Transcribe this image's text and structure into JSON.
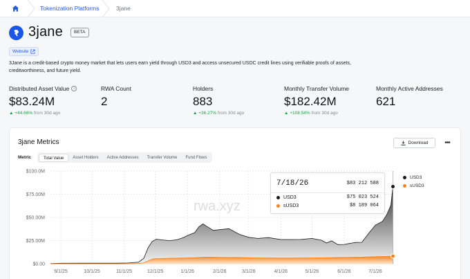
{
  "breadcrumb": {
    "items": [
      "Tokenization Platforms",
      "3jane"
    ]
  },
  "header": {
    "title": "3jane",
    "badge": "BETA",
    "website_label": "Website",
    "description": "3Jane is a credit-based crypto money market that lets users earn yield through USD3 and access unsecured USDC credit lines using verifiable proofs of assets, creditworthiness, and future yield."
  },
  "stats": [
    {
      "label": "Distributed Asset Value",
      "value": "$83.24M",
      "change": "+44.66%",
      "suffix": "from 30d ago"
    },
    {
      "label": "RWA Count",
      "value": "2",
      "change": "",
      "suffix": ""
    },
    {
      "label": "Holders",
      "value": "883",
      "change": "+36.27%",
      "suffix": "from 30d ago"
    },
    {
      "label": "Monthly Transfer Volume",
      "value": "$182.42M",
      "change": "+108.54%",
      "suffix": "from 30d ago"
    },
    {
      "label": "Monthly Active Addresses",
      "value": "621",
      "change": "",
      "suffix": ""
    }
  ],
  "metrics": {
    "title": "3jane Metrics",
    "download_label": "Download",
    "metric_label": "Metric",
    "tabs": [
      "Total Value",
      "Asset Holders",
      "Active Addresses",
      "Transfer Volume",
      "Fund Flows"
    ],
    "active_tab": 0
  },
  "tooltip": {
    "date": "7/18/26",
    "total": "$83 212 588",
    "rows": [
      {
        "name": "USD3",
        "value": "$75 023 524",
        "color": "#1a1a1a"
      },
      {
        "name": "sUSD3",
        "value": "$8 189 064",
        "color": "#f7841f"
      }
    ]
  },
  "legend": [
    {
      "name": "USD3",
      "color": "#1a1a1a"
    },
    {
      "name": "sUSD3",
      "color": "#f7841f"
    }
  ],
  "watermark": "rwa.xyz",
  "chart_data": {
    "type": "area",
    "stacked": true,
    "ylim": [
      0,
      100
    ],
    "y_unit": "$M",
    "y_ticks": [
      "$0.00",
      "$25.00M",
      "$50.00M",
      "$75.00M",
      "$100.0M"
    ],
    "x_ticks": [
      "9/1/25",
      "10/1/25",
      "11/1/25",
      "12/1/25",
      "1/1/26",
      "2/1/26",
      "3/1/26",
      "4/1/26",
      "5/1/26",
      "6/1/26",
      "7/1/26"
    ],
    "x_domain": [
      "8/22/25",
      "7/19/26"
    ],
    "x": [
      "8/22/25",
      "9/1/25",
      "9/20/25",
      "10/10/25",
      "10/25/25",
      "11/5/25",
      "11/15/25",
      "11/20/25",
      "11/24/25",
      "11/28/25",
      "12/2/25",
      "12/8/25",
      "12/15/25",
      "12/22/25",
      "12/28/25",
      "1/1/26",
      "1/8/26",
      "1/12/26",
      "1/16/26",
      "1/20/26",
      "1/26/26",
      "2/1/26",
      "2/10/26",
      "2/20/26",
      "3/1/26",
      "3/10/26",
      "3/20/26",
      "4/1/26",
      "4/10/26",
      "4/20/26",
      "5/1/26",
      "5/10/26",
      "5/15/26",
      "5/20/26",
      "5/26/26",
      "6/1/26",
      "6/6/26",
      "6/12/26",
      "6/18/26",
      "6/25/26",
      "7/1/26",
      "7/8/26",
      "7/12/26",
      "7/16/26",
      "7/18/26"
    ],
    "series": [
      {
        "name": "USD3",
        "color": "#1a1a1a",
        "values": [
          0.3,
          0.5,
          0.6,
          0.6,
          0.7,
          0.8,
          1.5,
          5,
          14,
          19,
          21,
          20,
          19,
          20,
          22,
          24,
          27,
          33,
          36,
          33,
          29,
          30,
          31,
          25,
          22,
          21,
          22,
          20,
          20,
          20,
          21,
          19,
          16,
          18,
          14,
          14,
          15,
          16,
          16,
          26,
          34,
          38,
          45,
          55,
          75
        ]
      },
      {
        "name": "sUSD3",
        "color": "#f7841f",
        "values": [
          0,
          0,
          0,
          0,
          0,
          0,
          0.2,
          1,
          3,
          5,
          5.5,
          5.7,
          5.9,
          6,
          6.2,
          6.4,
          6.6,
          6.8,
          7,
          7.1,
          7,
          6.9,
          6.8,
          6.7,
          6.5,
          6.3,
          6.2,
          6.1,
          6.1,
          6.2,
          6.3,
          6.4,
          6.5,
          6.6,
          6.7,
          6.8,
          6.9,
          7,
          7.1,
          7.4,
          7.6,
          7.8,
          7.9,
          8.1,
          8.19
        ]
      }
    ]
  }
}
